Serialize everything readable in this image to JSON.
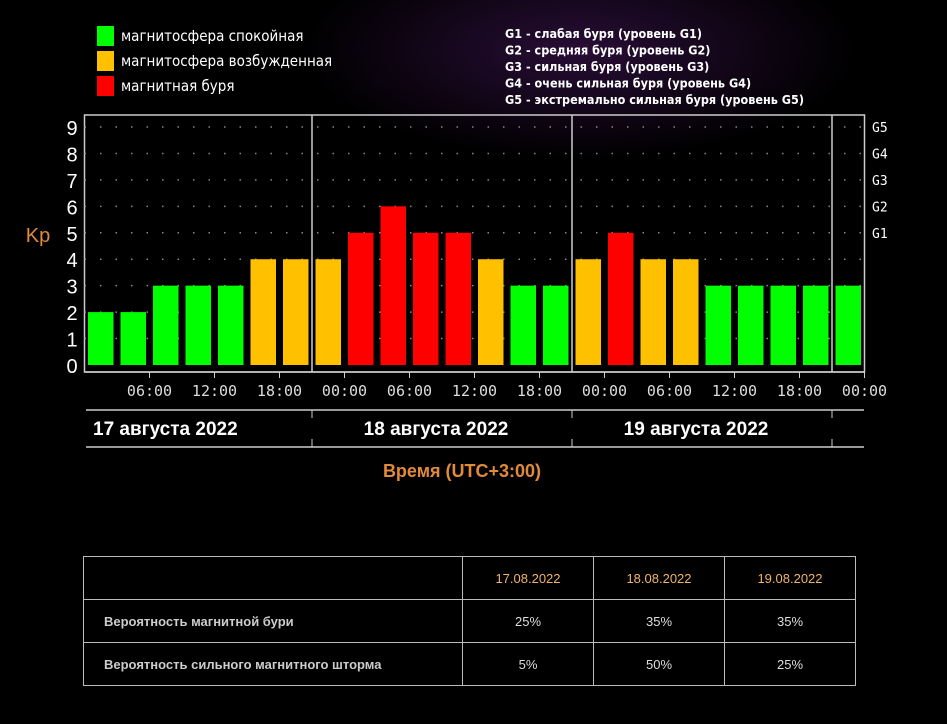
{
  "legend": {
    "items": [
      {
        "label": "магнитосфера спокойная",
        "color": "#00ff00"
      },
      {
        "label": "магнитосфера возбужденная",
        "color": "#ffc000"
      },
      {
        "label": "магнитная буря",
        "color": "#ff0000"
      }
    ],
    "g_scale": [
      "G1 - слабая буря (уровень G1)",
      "G2 - средняя буря (уровень G2)",
      "G3 - сильная буря (уровень G3)",
      "G4 - очень сильная буря (уровень G4)",
      "G5 - экстремально сильная буря (уровень G5)"
    ]
  },
  "chart_data": {
    "type": "bar",
    "ylabel": "Kp",
    "xlabel": "Время (UTC+3:00)",
    "ylim": [
      0,
      9
    ],
    "yticks": [
      "0",
      "1",
      "2",
      "3",
      "4",
      "5",
      "6",
      "7",
      "8",
      "9"
    ],
    "right_ticks": [
      {
        "label": "G1",
        "kp": 5
      },
      {
        "label": "G2",
        "kp": 6
      },
      {
        "label": "G3",
        "kp": 7
      },
      {
        "label": "G4",
        "kp": 8
      },
      {
        "label": "G5",
        "kp": 9
      }
    ],
    "xtick_labels": [
      "06:00",
      "12:00",
      "18:00",
      "00:00",
      "06:00",
      "12:00",
      "18:00",
      "00:00",
      "06:00",
      "12:00",
      "18:00",
      "00:00"
    ],
    "days": [
      "17 августа 2022",
      "18 августа 2022",
      "19 августа 2022"
    ],
    "values": [
      2,
      2,
      3,
      3,
      3,
      4,
      4,
      4,
      5,
      6,
      5,
      5,
      4,
      3,
      3,
      4,
      5,
      4,
      4,
      3,
      3,
      3,
      3,
      3
    ],
    "color_rule": {
      "quiet_max": 3,
      "active": 4,
      "storm_min": 5
    },
    "grid": true
  },
  "table": {
    "headers": [
      "",
      "17.08.2022",
      "18.08.2022",
      "19.08.2022"
    ],
    "rows": [
      {
        "label": "Вероятность магнитной бури",
        "values": [
          "25%",
          "35%",
          "35%"
        ]
      },
      {
        "label": "Вероятность сильного магнитного шторма",
        "values": [
          "5%",
          "50%",
          "25%"
        ]
      }
    ]
  }
}
